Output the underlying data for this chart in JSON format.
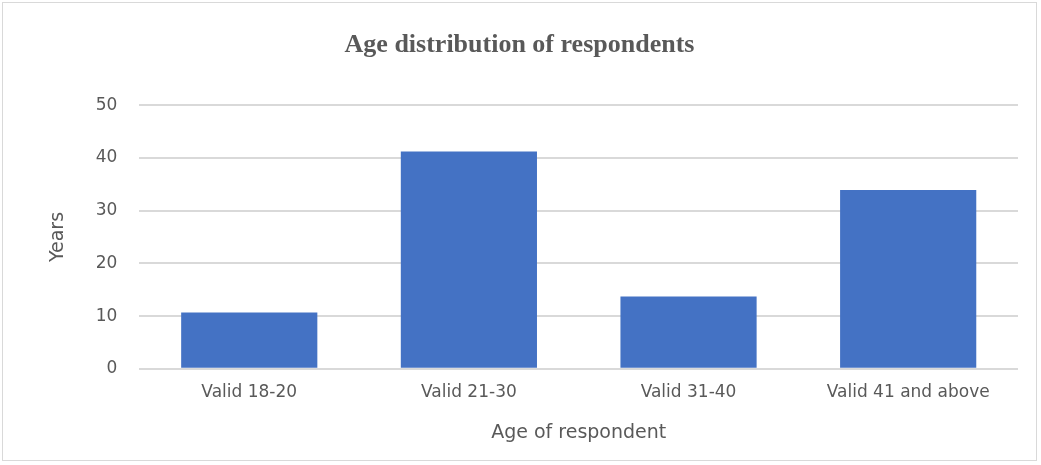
{
  "chart_data": {
    "type": "bar",
    "title": "Age distribution of respondents",
    "xlabel": "Age of respondent",
    "ylabel": "Years",
    "categories": [
      "Valid 18-20",
      "Valid 21-30",
      "Valid 31-40",
      "Valid 41 and above"
    ],
    "values": [
      10.7,
      41.2,
      13.7,
      33.9
    ],
    "color": "#4472c4",
    "ylim": [
      0,
      50
    ],
    "yticks": [
      0,
      10,
      20,
      30,
      40,
      50
    ],
    "grid": "y",
    "legend": false
  }
}
